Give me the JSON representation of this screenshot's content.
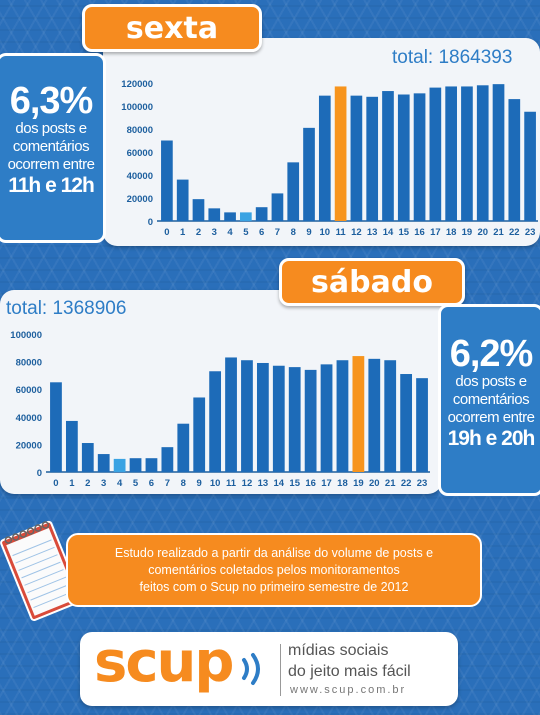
{
  "friday": {
    "title": "sexta",
    "total": "total: 1864393",
    "stat": {
      "percent": "6,3%",
      "line1": "dos posts e",
      "line2": "comentários",
      "line3": "ocorrem entre",
      "hours": "11h e 12h"
    }
  },
  "saturday": {
    "title": "sábado",
    "total": "total: 1368906",
    "stat": {
      "percent": "6,2%",
      "line1": "dos posts e",
      "line2": "comentários",
      "line3": "ocorrem entre",
      "hours": "19h e 20h"
    }
  },
  "note": {
    "line1": "Estudo realizado a partir da análise do volume de posts e",
    "line2": "comentários coletados pelos monitoramentos",
    "line3": "feitos com o Scup no primeiro semestre de 2012"
  },
  "logo": {
    "brand": "scup",
    "tagline1": "mídias sociais",
    "tagline2": "do jeito mais fácil",
    "url": "www.scup.com.br"
  },
  "colors": {
    "bar": "#1d6bb8",
    "highlight": "#f7941d",
    "low": "#3aa3e3",
    "accent": "#f68b1f"
  },
  "chart_data": [
    {
      "type": "bar",
      "categories": [
        "0",
        "1",
        "2",
        "3",
        "4",
        "5",
        "6",
        "7",
        "8",
        "9",
        "10",
        "11",
        "12",
        "13",
        "14",
        "15",
        "16",
        "17",
        "18",
        "19",
        "20",
        "21",
        "22",
        "23"
      ],
      "values": [
        70000,
        36000,
        19000,
        11000,
        7500,
        7500,
        12000,
        24000,
        51000,
        81000,
        109000,
        117000,
        109000,
        108000,
        113000,
        110000,
        111000,
        116000,
        117000,
        117000,
        118000,
        119000,
        106000,
        95000
      ],
      "highlight_index": 11,
      "low_indices": [
        5
      ],
      "ylim": [
        0,
        120000
      ],
      "yticks": [
        0,
        20000,
        40000,
        60000,
        80000,
        100000,
        120000
      ],
      "title": "",
      "xlabel": "",
      "ylabel": ""
    },
    {
      "type": "bar",
      "categories": [
        "0",
        "1",
        "2",
        "3",
        "4",
        "5",
        "6",
        "7",
        "8",
        "9",
        "10",
        "11",
        "12",
        "13",
        "14",
        "15",
        "16",
        "17",
        "18",
        "19",
        "20",
        "21",
        "22",
        "23"
      ],
      "values": [
        65000,
        37000,
        21000,
        13000,
        9500,
        10000,
        10000,
        18000,
        35000,
        54000,
        73000,
        83000,
        81000,
        79000,
        77000,
        76000,
        74000,
        78000,
        81000,
        84000,
        82000,
        81000,
        71000,
        68000
      ],
      "highlight_index": 19,
      "low_indices": [
        4
      ],
      "ylim": [
        0,
        100000
      ],
      "yticks": [
        0,
        20000,
        40000,
        60000,
        80000,
        100000
      ],
      "title": "",
      "xlabel": "",
      "ylabel": ""
    }
  ]
}
